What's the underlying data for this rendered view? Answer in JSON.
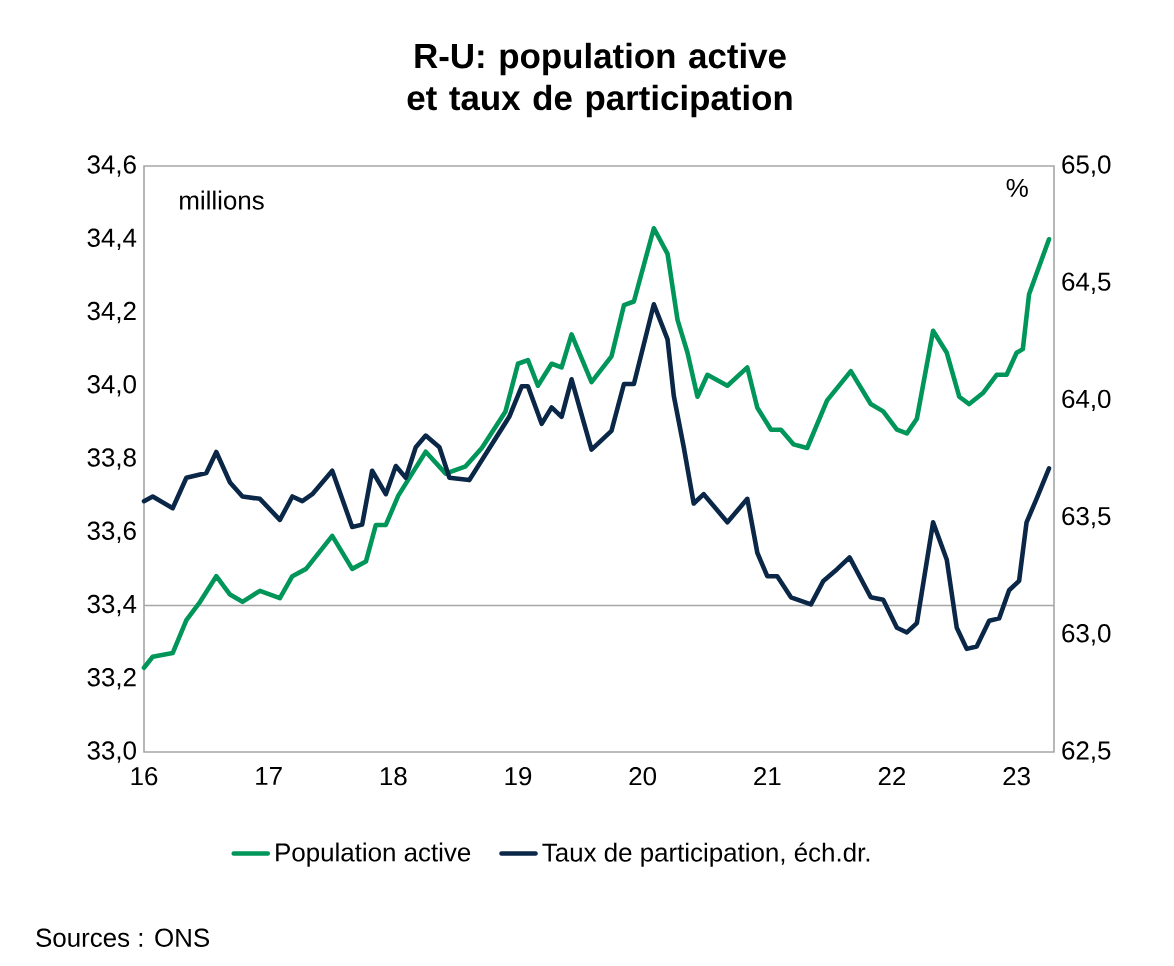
{
  "chart_data": {
    "type": "line",
    "title": "R-U: population active et taux de participation",
    "ylabel": "millions",
    "y2label": "%",
    "xlim": [
      16,
      23.3
    ],
    "xticks": [
      16,
      17,
      18,
      19,
      20,
      21,
      22,
      23
    ],
    "ylim": [
      33.0,
      34.6
    ],
    "yticks": [
      {
        "value": 33.0,
        "label": "33,0"
      },
      {
        "value": 33.2,
        "label": "33,2"
      },
      {
        "value": 33.4,
        "label": "33,4"
      },
      {
        "value": 33.6,
        "label": "33,6"
      },
      {
        "value": 33.8,
        "label": "33,8"
      },
      {
        "value": 34.0,
        "label": "34,0"
      },
      {
        "value": 34.2,
        "label": "34,2"
      },
      {
        "value": 34.4,
        "label": "34,4"
      },
      {
        "value": 34.6,
        "label": "34,6"
      }
    ],
    "y2lim": [
      62.5,
      65.0
    ],
    "y2ticks": [
      {
        "value": 62.5,
        "label": "62,5"
      },
      {
        "value": 63.0,
        "label": "63,0"
      },
      {
        "value": 63.5,
        "label": "63,5"
      },
      {
        "value": 64.0,
        "label": "64,0"
      },
      {
        "value": 64.5,
        "label": "64,5"
      },
      {
        "value": 65.0,
        "label": "65,0"
      }
    ],
    "legend": "bottom",
    "grid": false,
    "ref_lines": [
      {
        "axis": "y",
        "value": 33.4,
        "color": "#a6a6a6"
      }
    ],
    "annotations": [
      "Sources : ONS"
    ],
    "series": [
      {
        "name": "Population active",
        "color": "#00965a",
        "x": [
          16.0,
          16.07,
          16.23,
          16.34,
          16.45,
          16.58,
          16.69,
          16.79,
          16.93,
          17.09,
          17.19,
          17.3,
          17.51,
          17.67,
          17.78,
          17.86,
          17.94,
          18.04,
          18.15,
          18.26,
          18.42,
          18.58,
          18.71,
          18.9,
          19.0,
          19.08,
          19.16,
          19.27,
          19.35,
          19.43,
          19.59,
          19.75,
          19.85,
          19.93,
          20.09,
          20.2,
          20.28,
          20.36,
          20.44,
          20.52,
          20.68,
          20.84,
          20.92,
          21.03,
          21.11,
          21.21,
          21.32,
          21.48,
          21.67,
          21.83,
          21.93,
          22.04,
          22.12,
          22.2,
          22.33,
          22.44,
          22.54,
          22.62,
          22.73,
          22.84,
          22.92,
          23.0,
          23.05,
          23.1,
          23.26
        ],
        "values": [
          33.23,
          33.26,
          33.27,
          33.36,
          33.41,
          33.48,
          33.43,
          33.41,
          33.44,
          33.42,
          33.48,
          33.5,
          33.59,
          33.5,
          33.52,
          33.62,
          33.62,
          33.7,
          33.76,
          33.82,
          33.76,
          33.78,
          33.83,
          33.93,
          34.06,
          34.07,
          34.0,
          34.06,
          34.05,
          34.14,
          34.01,
          34.08,
          34.22,
          34.23,
          34.43,
          34.36,
          34.18,
          34.09,
          33.97,
          34.03,
          34.0,
          34.05,
          33.94,
          33.88,
          33.88,
          33.84,
          33.83,
          33.96,
          34.04,
          33.95,
          33.93,
          33.88,
          33.87,
          33.91,
          34.15,
          34.09,
          33.97,
          33.95,
          33.98,
          34.03,
          34.03,
          34.09,
          34.1,
          34.25,
          34.4
        ]
      },
      {
        "name": "Taux de participation, éch.dr.",
        "color": "#0b2747",
        "axis": "y2",
        "x": [
          16.0,
          16.07,
          16.23,
          16.34,
          16.5,
          16.58,
          16.69,
          16.79,
          16.93,
          17.09,
          17.19,
          17.27,
          17.35,
          17.51,
          17.67,
          17.75,
          17.83,
          17.94,
          18.02,
          18.1,
          18.18,
          18.26,
          18.37,
          18.45,
          18.61,
          18.74,
          18.93,
          19.03,
          19.08,
          19.19,
          19.27,
          19.35,
          19.43,
          19.59,
          19.75,
          19.85,
          19.93,
          20.09,
          20.2,
          20.25,
          20.33,
          20.41,
          20.49,
          20.68,
          20.84,
          20.92,
          21.0,
          21.08,
          21.19,
          21.35,
          21.45,
          21.56,
          21.66,
          21.83,
          21.93,
          22.04,
          22.12,
          22.2,
          22.33,
          22.44,
          22.52,
          22.6,
          22.68,
          22.78,
          22.86,
          22.94,
          23.02,
          23.08,
          23.16,
          23.26
        ],
        "values": [
          63.57,
          63.59,
          63.54,
          63.67,
          63.69,
          63.78,
          63.65,
          63.59,
          63.58,
          63.49,
          63.59,
          63.57,
          63.6,
          63.7,
          63.46,
          63.47,
          63.7,
          63.6,
          63.72,
          63.67,
          63.8,
          63.85,
          63.8,
          63.67,
          63.66,
          63.77,
          63.93,
          64.06,
          64.06,
          63.9,
          63.97,
          63.93,
          64.09,
          63.79,
          63.87,
          64.07,
          64.07,
          64.41,
          64.26,
          64.02,
          63.8,
          63.56,
          63.6,
          63.48,
          63.58,
          63.35,
          63.25,
          63.25,
          63.16,
          63.13,
          63.23,
          63.28,
          63.33,
          63.16,
          63.15,
          63.03,
          63.01,
          63.05,
          63.48,
          63.32,
          63.03,
          62.94,
          62.95,
          63.06,
          63.07,
          63.19,
          63.23,
          63.48,
          63.58,
          63.71
        ]
      }
    ]
  }
}
